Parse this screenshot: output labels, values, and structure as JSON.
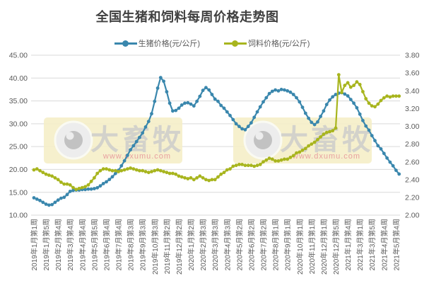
{
  "title": "全国生猪和饲料每周价格走势图",
  "legend": {
    "items": [
      {
        "label": "生猪价格(元/公斤)",
        "color": "#3a87ad"
      },
      {
        "label": "饲料价格(元/公斤)",
        "color": "#a8b51e"
      }
    ]
  },
  "watermark": {
    "brand": "大畜牧",
    "url": "www.dxumu.com"
  },
  "colors": {
    "background": "#ffffff",
    "grid": "#d9d9d9",
    "axis_text": "#595959",
    "title_text": "#404040",
    "pig_line": "#3a87ad",
    "feed_line": "#a8b51e",
    "watermark_bg": "#f5efc9",
    "watermark_circle": "#ededed",
    "watermark_pupil": "#c2c2c2",
    "watermark_text": "#cbcbcb",
    "watermark_url": "#e8a0a0"
  },
  "chart_data": {
    "type": "line",
    "title": "全国生猪和饲料每周价格走势图",
    "legend_position": "top",
    "grid": "horizontal",
    "x_tick_every": 4,
    "n_points": 122,
    "x_tick_labels": [
      "2019年1月第1周",
      "2019年1月第5周",
      "2019年2月第4周",
      "2019年3月第4周",
      "2019年4月第4周",
      "2019年5月第5周",
      "2019年6月第4周",
      "2019年7月第4周",
      "2019年8月第3周",
      "2019年9月第3周",
      "2019年10月第3周",
      "2019年11月第2周",
      "2019年12月第2周",
      "2020年1月第2周",
      "2020年2月第3周",
      "2020年3月第3周",
      "2020年4月第3周",
      "2020年5月第2周",
      "2020年6月第2周",
      "2020年7月第2周",
      "2020年8月第1周",
      "2020年9月第1周",
      "2020年10月第1周",
      "2020年11月第1周",
      "2020年12月第1周",
      "2020年12月第5周",
      "2021年1月第4周",
      "2021年3月第1周",
      "2021年3月第5周",
      "2021年4月第4周",
      "2021年5月第4周"
    ],
    "left_axis": {
      "label": "生猪价格(元/公斤)",
      "min": 10,
      "max": 45,
      "step": 5,
      "tick_labels": [
        "45.00",
        "40.00",
        "35.00",
        "30.00",
        "25.00",
        "20.00",
        "15.00",
        "10.00"
      ]
    },
    "right_axis": {
      "label": "饲料价格(元/公斤)",
      "min": 2.0,
      "max": 3.8,
      "step": 0.2,
      "tick_labels": [
        "3.80",
        "3.60",
        "3.40",
        "3.20",
        "3.00",
        "2.80",
        "2.60",
        "2.40",
        "2.20",
        "2.00"
      ]
    },
    "series": [
      {
        "name": "生猪价格(元/公斤)",
        "axis": "left",
        "color": "#3a87ad",
        "values": [
          13.8,
          13.5,
          13.2,
          12.8,
          12.4,
          12.2,
          12.3,
          12.8,
          13.3,
          13.7,
          13.9,
          14.5,
          15.2,
          15.4,
          15.5,
          15.5,
          15.6,
          15.6,
          15.7,
          15.7,
          15.8,
          16.0,
          16.4,
          16.9,
          17.3,
          17.8,
          18.4,
          19.1,
          19.8,
          20.8,
          21.9,
          23.1,
          24.3,
          25.2,
          26.1,
          27.0,
          28.0,
          29.3,
          30.5,
          32.2,
          34.9,
          37.8,
          40.1,
          39.3,
          37.0,
          34.5,
          32.8,
          32.9,
          33.4,
          34.1,
          34.5,
          34.6,
          34.3,
          33.9,
          34.9,
          36.0,
          37.3,
          37.9,
          37.4,
          36.4,
          35.4,
          34.9,
          34.0,
          33.4,
          32.6,
          31.8,
          30.9,
          30.0,
          29.4,
          28.9,
          28.7,
          29.4,
          30.2,
          31.4,
          32.6,
          33.7,
          34.8,
          35.7,
          36.6,
          37.1,
          37.4,
          37.2,
          37.5,
          37.4,
          37.2,
          36.9,
          36.4,
          35.7,
          34.8,
          33.6,
          32.3,
          31.2,
          30.3,
          29.8,
          30.4,
          31.6,
          32.8,
          34.2,
          35.2,
          35.9,
          36.4,
          36.7,
          36.8,
          36.5,
          36.1,
          35.3,
          34.5,
          33.5,
          32.1,
          30.7,
          29.5,
          28.6,
          27.4,
          26.3,
          25.2,
          24.5,
          23.5,
          22.5,
          21.6,
          20.8,
          19.8,
          19.0
        ]
      },
      {
        "name": "饲料价格(元/公斤)",
        "axis": "right",
        "color": "#a8b51e",
        "values": [
          2.51,
          2.52,
          2.5,
          2.48,
          2.46,
          2.45,
          2.44,
          2.42,
          2.4,
          2.37,
          2.35,
          2.35,
          2.34,
          2.31,
          2.29,
          2.3,
          2.31,
          2.32,
          2.34,
          2.38,
          2.42,
          2.47,
          2.5,
          2.52,
          2.52,
          2.51,
          2.5,
          2.5,
          2.49,
          2.5,
          2.51,
          2.52,
          2.53,
          2.52,
          2.51,
          2.5,
          2.5,
          2.49,
          2.48,
          2.49,
          2.5,
          2.51,
          2.5,
          2.49,
          2.48,
          2.47,
          2.47,
          2.46,
          2.44,
          2.43,
          2.42,
          2.41,
          2.42,
          2.4,
          2.42,
          2.44,
          2.42,
          2.4,
          2.39,
          2.4,
          2.4,
          2.43,
          2.46,
          2.48,
          2.51,
          2.52,
          2.55,
          2.56,
          2.57,
          2.57,
          2.56,
          2.56,
          2.56,
          2.55,
          2.56,
          2.57,
          2.6,
          2.62,
          2.64,
          2.63,
          2.61,
          2.61,
          2.62,
          2.63,
          2.63,
          2.65,
          2.67,
          2.7,
          2.71,
          2.73,
          2.75,
          2.78,
          2.8,
          2.82,
          2.85,
          2.88,
          2.91,
          2.93,
          2.94,
          2.95,
          2.98,
          3.58,
          3.38,
          3.46,
          3.49,
          3.44,
          3.46,
          3.5,
          3.47,
          3.39,
          3.31,
          3.26,
          3.23,
          3.22,
          3.25,
          3.29,
          3.32,
          3.34,
          3.33,
          3.34,
          3.34,
          3.34
        ]
      }
    ]
  }
}
